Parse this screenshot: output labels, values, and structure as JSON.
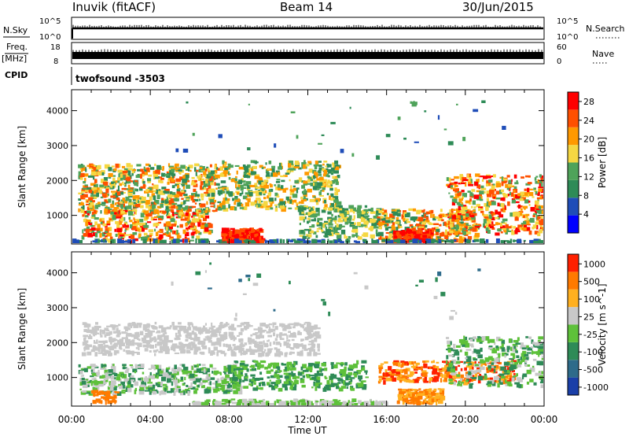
{
  "header": {
    "site": "Inuvik (fitACF)",
    "beam": "Beam 14",
    "date": "30/Jun/2015"
  },
  "panels": {
    "nsky": {
      "label": "N.Sky",
      "right_label": "N.Search",
      "y_top": "10^5",
      "y_bottom": "10^0"
    },
    "freq": {
      "label_line1": "Freq.",
      "label_line2": "[MHz]",
      "y_top": "18",
      "y_bottom": "8",
      "right_label": "Nave",
      "y2_top": "60",
      "y2_bottom": "0"
    },
    "cpid": {
      "label": "CPID",
      "value": "twofsound  -3503"
    }
  },
  "chart_data": [
    {
      "type": "heatmap",
      "title": "",
      "xlabel": "",
      "ylabel": "Slant Range [km]",
      "x_range_hours": [
        0,
        24
      ],
      "ylim": [
        180,
        4600
      ],
      "yticks": [
        1000,
        2000,
        3000,
        4000
      ],
      "colorbar": {
        "label": "Power [dB]",
        "ticks": [
          4,
          8,
          12,
          16,
          20,
          24,
          28
        ],
        "range": [
          0,
          30
        ]
      },
      "colors": [
        "#0000ff",
        "#1f4db8",
        "#2e8b57",
        "#4fa35a",
        "#f5d742",
        "#ff9900",
        "#ff5000",
        "#ff0000"
      ]
    },
    {
      "type": "heatmap",
      "title": "",
      "xlabel": "Time UT",
      "ylabel": "Slant Range [km]",
      "x_range_hours": [
        0,
        24
      ],
      "xticks": [
        "00:00",
        "04:00",
        "08:00",
        "12:00",
        "16:00",
        "20:00",
        "00:00"
      ],
      "ylim": [
        180,
        4600
      ],
      "yticks": [
        1000,
        2000,
        3000,
        4000
      ],
      "colorbar": {
        "label": "Velocity [m s^-1]",
        "ticks": [
          "1000",
          "500",
          "100",
          "25",
          "-25",
          "-100",
          "-500",
          "-1000"
        ]
      },
      "colors": [
        "#1a3fa8",
        "#2e6b8a",
        "#2e8b57",
        "#5ec13a",
        "#c8c8c8",
        "#ffb020",
        "#ff7a00",
        "#ff2000"
      ]
    }
  ]
}
